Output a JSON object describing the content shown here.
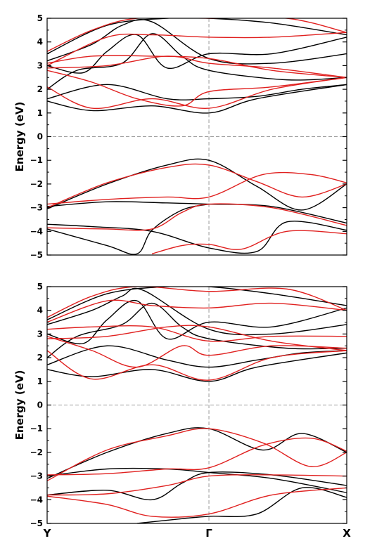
{
  "chart_data": [
    {
      "type": "line",
      "ylabel": "Energy (eV)",
      "ylim": [
        -5,
        5
      ],
      "y_ticks": [
        "-5",
        "-4",
        "-3",
        "-2",
        "-1",
        "0",
        "1",
        "2",
        "3",
        "4",
        "5"
      ],
      "k_labels": [],
      "x_range": [
        0,
        1
      ],
      "gamma_x": 0.54,
      "fermi_level": 0,
      "reference_lines": "dashed gray at E=0 and at Γ",
      "series_colors": {
        "black": "#000000",
        "red": "#e0201f"
      },
      "series": [
        {
          "color": "black",
          "x": [
            0,
            0.2,
            0.4,
            0.54,
            0.75,
            1
          ],
          "y": [
            -2.95,
            -2.75,
            -2.8,
            -2.85,
            -2.95,
            -3.65
          ]
        },
        {
          "color": "black",
          "x": [
            0,
            0.2,
            0.4,
            0.54,
            0.7,
            0.85,
            1
          ],
          "y": [
            -3.05,
            -2.0,
            -1.2,
            -1.0,
            -2.1,
            -3.1,
            -2.0
          ]
        },
        {
          "color": "black",
          "x": [
            0,
            0.15,
            0.35,
            0.54,
            0.7,
            0.8,
            1
          ],
          "y": [
            -3.7,
            -3.8,
            -4.0,
            -4.7,
            -4.85,
            -3.6,
            -3.95
          ]
        },
        {
          "color": "black",
          "x": [
            0,
            0.2,
            0.3,
            0.35,
            0.45,
            0.54
          ],
          "y": [
            -3.9,
            -4.6,
            -4.95,
            -3.95,
            -3.1,
            -2.85
          ]
        },
        {
          "color": "red",
          "x": [
            0,
            0.2,
            0.4,
            0.54,
            0.72,
            0.88,
            1
          ],
          "y": [
            -2.85,
            -2.65,
            -2.55,
            -2.55,
            -1.6,
            -1.6,
            -1.95
          ]
        },
        {
          "color": "red",
          "x": [
            0,
            0.2,
            0.4,
            0.54,
            0.7,
            0.85,
            1
          ],
          "y": [
            -3.0,
            -1.95,
            -1.3,
            -1.2,
            -1.9,
            -2.55,
            -2.0
          ]
        },
        {
          "color": "red",
          "x": [
            0,
            0.2,
            0.35,
            0.45,
            0.54,
            0.75,
            1
          ],
          "y": [
            -3.85,
            -3.9,
            -3.9,
            -3.2,
            -2.85,
            -3.0,
            -3.75
          ]
        },
        {
          "color": "red",
          "x": [
            0.35,
            0.45,
            0.54,
            0.65,
            0.8,
            1
          ],
          "y": [
            -4.95,
            -4.6,
            -4.55,
            -4.75,
            -4.0,
            -4.1
          ]
        },
        {
          "color": "black",
          "x": [
            0,
            0.15,
            0.35,
            0.54,
            0.7,
            1
          ],
          "y": [
            1.5,
            1.1,
            1.3,
            1.0,
            1.6,
            2.2
          ]
        },
        {
          "color": "black",
          "x": [
            0,
            0.2,
            0.4,
            0.54,
            0.7,
            0.85,
            1
          ],
          "y": [
            1.6,
            2.2,
            1.6,
            1.6,
            1.7,
            2.0,
            2.2
          ]
        },
        {
          "color": "black",
          "x": [
            0,
            0.1,
            0.25,
            0.35,
            0.45,
            0.54,
            0.8,
            1
          ],
          "y": [
            2.0,
            2.8,
            3.1,
            4.35,
            3.4,
            2.8,
            2.4,
            2.5
          ]
        },
        {
          "color": "black",
          "x": [
            0,
            0.12,
            0.2,
            0.3,
            0.4,
            0.54,
            0.75,
            1
          ],
          "y": [
            3.0,
            2.7,
            3.6,
            4.3,
            2.9,
            3.5,
            3.5,
            4.2
          ]
        },
        {
          "color": "black",
          "x": [
            0,
            0.15,
            0.25,
            0.35,
            0.54,
            0.75,
            1
          ],
          "y": [
            3.2,
            3.9,
            4.7,
            4.85,
            3.3,
            3.1,
            3.5
          ]
        },
        {
          "color": "black",
          "x": [
            0,
            0.2,
            0.4,
            0.54,
            0.75,
            1
          ],
          "y": [
            3.5,
            4.7,
            5.0,
            5.0,
            4.8,
            4.3
          ]
        },
        {
          "color": "red",
          "x": [
            0,
            0.15,
            0.35,
            0.54,
            0.75,
            1
          ],
          "y": [
            2.1,
            1.2,
            1.6,
            1.2,
            2.0,
            2.5
          ]
        },
        {
          "color": "red",
          "x": [
            0,
            0.2,
            0.4,
            0.54,
            0.75,
            1
          ],
          "y": [
            2.9,
            3.0,
            3.4,
            3.1,
            2.9,
            2.5
          ]
        },
        {
          "color": "red",
          "x": [
            0,
            0.15,
            0.3,
            0.45,
            0.54,
            0.75,
            1
          ],
          "y": [
            2.8,
            2.3,
            1.6,
            1.3,
            1.9,
            2.1,
            2.5
          ]
        },
        {
          "color": "red",
          "x": [
            0,
            0.15,
            0.35,
            0.54,
            0.75,
            1
          ],
          "y": [
            3.1,
            3.4,
            3.4,
            3.3,
            2.8,
            2.5
          ]
        },
        {
          "color": "red",
          "x": [
            0,
            0.2,
            0.35,
            0.54,
            0.75,
            1
          ],
          "y": [
            3.0,
            4.2,
            4.3,
            4.2,
            4.2,
            4.4
          ]
        },
        {
          "color": "red",
          "x": [
            0,
            0.15,
            0.3,
            0.54,
            0.8,
            1
          ],
          "y": [
            3.6,
            4.5,
            5.0,
            5.0,
            5.0,
            4.4
          ]
        }
      ]
    },
    {
      "type": "line",
      "ylabel": "Energy (eV)",
      "ylim": [
        -5,
        5
      ],
      "y_ticks": [
        "-5",
        "-4",
        "-3",
        "-2",
        "-1",
        "0",
        "1",
        "2",
        "3",
        "4",
        "5"
      ],
      "k_labels": [
        "Y",
        "Γ",
        "X"
      ],
      "x_range": [
        0,
        1
      ],
      "gamma_x": 0.54,
      "fermi_level": 0,
      "reference_lines": "dashed gray at E=0 and at Γ",
      "series_colors": {
        "black": "#000000",
        "red": "#e0201f"
      },
      "series": [
        {
          "color": "black",
          "x": [
            0,
            0.2,
            0.4,
            0.54,
            0.75,
            1
          ],
          "y": [
            -3.0,
            -2.7,
            -2.7,
            -2.85,
            -3.1,
            -3.7
          ]
        },
        {
          "color": "black",
          "x": [
            0,
            0.2,
            0.4,
            0.54,
            0.72,
            0.85,
            1
          ],
          "y": [
            -3.1,
            -2.0,
            -1.2,
            -1.0,
            -1.9,
            -1.2,
            -2.0
          ]
        },
        {
          "color": "black",
          "x": [
            0,
            0.2,
            0.35,
            0.45,
            0.54,
            0.75,
            1
          ],
          "y": [
            -3.8,
            -3.6,
            -4.0,
            -3.3,
            -2.85,
            -2.95,
            -3.4
          ]
        },
        {
          "color": "black",
          "x": [
            0.3,
            0.45,
            0.54,
            0.7,
            0.85,
            1
          ],
          "y": [
            -5.0,
            -4.8,
            -4.7,
            -4.6,
            -3.5,
            -3.9
          ]
        },
        {
          "color": "red",
          "x": [
            0,
            0.2,
            0.4,
            0.54,
            0.72,
            0.88,
            1
          ],
          "y": [
            -2.95,
            -2.9,
            -2.7,
            -2.65,
            -1.7,
            -1.4,
            -1.95
          ]
        },
        {
          "color": "red",
          "x": [
            0,
            0.2,
            0.4,
            0.54,
            0.72,
            0.88,
            1
          ],
          "y": [
            -3.2,
            -1.9,
            -1.3,
            -1.0,
            -1.6,
            -2.6,
            -2.0
          ]
        },
        {
          "color": "red",
          "x": [
            0,
            0.2,
            0.35,
            0.54,
            0.75,
            1
          ],
          "y": [
            -3.85,
            -4.2,
            -4.7,
            -4.6,
            -3.8,
            -3.5
          ]
        },
        {
          "color": "red",
          "x": [
            0,
            0.2,
            0.4,
            0.54,
            0.75,
            1
          ],
          "y": [
            -3.8,
            -3.75,
            -3.4,
            -3.0,
            -2.95,
            -3.0
          ]
        },
        {
          "color": "black",
          "x": [
            0,
            0.15,
            0.35,
            0.54,
            0.7,
            1
          ],
          "y": [
            1.5,
            1.2,
            1.5,
            1.0,
            1.6,
            2.2
          ]
        },
        {
          "color": "black",
          "x": [
            0,
            0.2,
            0.4,
            0.54,
            0.7,
            0.85,
            1
          ],
          "y": [
            1.7,
            2.5,
            1.9,
            1.6,
            1.9,
            2.2,
            2.3
          ]
        },
        {
          "color": "black",
          "x": [
            0,
            0.1,
            0.25,
            0.35,
            0.45,
            0.54,
            0.8,
            1
          ],
          "y": [
            2.0,
            2.9,
            3.4,
            4.3,
            3.3,
            2.8,
            2.4,
            2.4
          ]
        },
        {
          "color": "black",
          "x": [
            0,
            0.12,
            0.2,
            0.3,
            0.4,
            0.54,
            0.75,
            1
          ],
          "y": [
            3.0,
            2.6,
            3.6,
            4.4,
            2.8,
            3.5,
            3.3,
            4.1
          ]
        },
        {
          "color": "black",
          "x": [
            0,
            0.15,
            0.25,
            0.32,
            0.54,
            0.75,
            1
          ],
          "y": [
            3.4,
            4.0,
            4.6,
            4.85,
            3.2,
            3.0,
            3.4
          ]
        },
        {
          "color": "black",
          "x": [
            0,
            0.2,
            0.4,
            0.54,
            0.75,
            1
          ],
          "y": [
            3.6,
            4.7,
            5.0,
            5.0,
            4.7,
            4.2
          ]
        },
        {
          "color": "red",
          "x": [
            0,
            0.15,
            0.35,
            0.54,
            0.75,
            1
          ],
          "y": [
            2.3,
            1.1,
            1.7,
            1.05,
            2.0,
            2.3
          ]
        },
        {
          "color": "red",
          "x": [
            0,
            0.2,
            0.4,
            0.54,
            0.75,
            1
          ],
          "y": [
            2.8,
            2.9,
            3.3,
            3.3,
            2.7,
            2.3
          ]
        },
        {
          "color": "red",
          "x": [
            0,
            0.15,
            0.3,
            0.45,
            0.54,
            0.75,
            1
          ],
          "y": [
            2.9,
            2.3,
            1.6,
            2.5,
            2.1,
            2.5,
            2.4
          ]
        },
        {
          "color": "red",
          "x": [
            0,
            0.15,
            0.35,
            0.54,
            0.75,
            1
          ],
          "y": [
            3.2,
            3.3,
            3.3,
            2.7,
            2.9,
            2.9
          ]
        },
        {
          "color": "red",
          "x": [
            0,
            0.2,
            0.35,
            0.54,
            0.75,
            1
          ],
          "y": [
            3.5,
            4.4,
            4.2,
            4.1,
            4.3,
            4.0
          ]
        },
        {
          "color": "red",
          "x": [
            0,
            0.15,
            0.3,
            0.54,
            0.8,
            1
          ],
          "y": [
            3.7,
            4.6,
            5.0,
            4.8,
            4.9,
            4.0
          ]
        }
      ]
    }
  ]
}
